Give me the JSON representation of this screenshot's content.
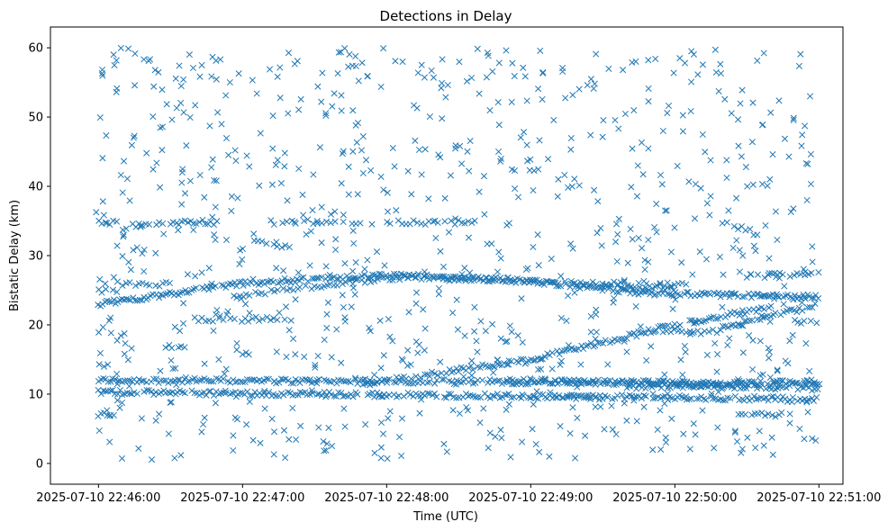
{
  "chart_data": {
    "type": "scatter",
    "title": "Detections in Delay",
    "xlabel": "Time (UTC)",
    "ylabel": "Bistatic Delay (km)",
    "x_unit": "seconds after 2025-07-10 22:46:00 UTC",
    "xlim": [
      -20,
      310
    ],
    "ylim": [
      -3,
      63
    ],
    "x_ticks": [
      0,
      60,
      120,
      180,
      240,
      300
    ],
    "x_tick_labels": [
      "2025-07-10 22:46:00",
      "2025-07-10 22:47:00",
      "2025-07-10 22:48:00",
      "2025-07-10 22:49:00",
      "2025-07-10 22:50:00",
      "2025-07-10 22:51:00"
    ],
    "y_ticks": [
      0,
      10,
      20,
      30,
      40,
      50,
      60
    ],
    "y_tick_labels": [
      "0",
      "10",
      "20",
      "30",
      "40",
      "50",
      "60"
    ],
    "marker": "x",
    "color": "#1f77b4",
    "grid": false,
    "tracks": [
      {
        "x": [
          0,
          300
        ],
        "y": [
          12.0,
          11.6
        ],
        "every": 1.0
      },
      {
        "x": [
          0,
          300
        ],
        "y": [
          10.3,
          9.3
        ],
        "every": 1.0
      },
      {
        "x": [
          0,
          60,
          120,
          180,
          230,
          300
        ],
        "y": [
          23.0,
          26.0,
          27.2,
          26.3,
          24.5,
          24.0
        ],
        "every": 0.9
      },
      {
        "x": [
          55,
          120,
          180,
          240
        ],
        "y": [
          24.0,
          26.8,
          26.5,
          25.0
        ],
        "every": 1.3
      },
      {
        "x": [
          110,
          180,
          240,
          280
        ],
        "y": [
          11.5,
          15.0,
          20.0,
          22.5
        ],
        "every": 1.0
      },
      {
        "x": [
          170,
          300
        ],
        "y": [
          12.0,
          10.8
        ],
        "every": 1.2
      },
      {
        "x": [
          220,
          300
        ],
        "y": [
          11.0,
          11.8
        ],
        "every": 1.3
      },
      {
        "x": [
          260,
          300
        ],
        "y": [
          19.5,
          23.0
        ],
        "every": 1.1
      },
      {
        "x": [
          0,
          8
        ],
        "y": [
          34.8,
          34.8
        ],
        "every": 1.5
      },
      {
        "x": [
          0,
          8
        ],
        "y": [
          25.0,
          25.0
        ],
        "every": 1.5
      },
      {
        "x": [
          10,
          28
        ],
        "y": [
          34.0,
          35.0
        ],
        "every": 1.4
      },
      {
        "x": [
          10,
          30
        ],
        "y": [
          26.0,
          25.8
        ],
        "every": 1.4
      },
      {
        "x": [
          30,
          50
        ],
        "y": [
          34.8,
          34.8
        ],
        "every": 1.2
      },
      {
        "x": [
          40,
          75
        ],
        "y": [
          20.8,
          20.8
        ],
        "every": 1.5
      },
      {
        "x": [
          75,
          110
        ],
        "y": [
          34.8,
          34.8
        ],
        "every": 1.8
      },
      {
        "x": [
          140,
          160
        ],
        "y": [
          34.8,
          34.8
        ],
        "every": 1.4
      },
      {
        "x": [
          210,
          245
        ],
        "y": [
          26.0,
          25.8
        ],
        "every": 1.5
      },
      {
        "x": [
          270,
          300
        ],
        "y": [
          27.0,
          27.5
        ],
        "every": 1.5
      },
      {
        "x": [
          290,
          300
        ],
        "y": [
          20.5,
          20.5
        ],
        "every": 1.3
      },
      {
        "x": [
          235,
          260
        ],
        "y": [
          19.0,
          19.0
        ],
        "every": 1.6
      },
      {
        "x": [
          180,
          210
        ],
        "y": [
          9.5,
          9.5
        ],
        "every": 1.5
      },
      {
        "x": [
          120,
          140
        ],
        "y": [
          34.8,
          34.8
        ],
        "every": 1.6
      },
      {
        "x": [
          65,
          80
        ],
        "y": [
          32.5,
          31.0
        ],
        "every": 1.6
      },
      {
        "x": [
          260,
          275
        ],
        "y": [
          35.0,
          33.0
        ],
        "every": 1.6
      },
      {
        "x": [
          0,
          5
        ],
        "y": [
          7.0,
          7.0
        ],
        "every": 1.2
      },
      {
        "x": [
          265,
          285
        ],
        "y": [
          7.0,
          7.0
        ],
        "every": 1.4
      },
      {
        "x": [
          28,
          36
        ],
        "y": [
          17.0,
          17.0
        ],
        "every": 1.3
      }
    ],
    "noise_points": 900,
    "noise_x_range": [
      -1,
      300
    ],
    "noise_y_range": [
      0.5,
      60
    ]
  }
}
